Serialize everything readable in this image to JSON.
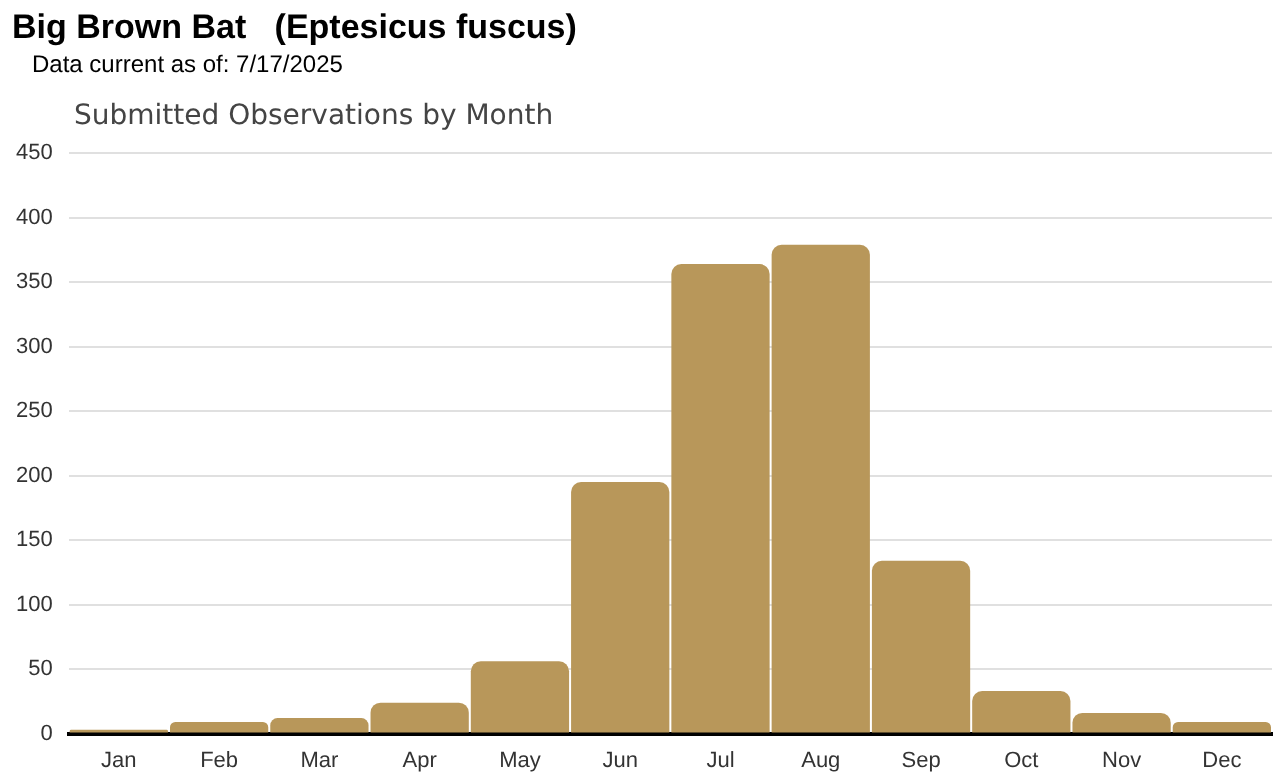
{
  "chart_data": {
    "type": "bar",
    "title": "Big Brown Bat   (Eptesicus fuscus)",
    "subtitle": "Data current as of: 7/17/2025",
    "annotations": [
      "Submitted Observations by Month"
    ],
    "categories": [
      "Jan",
      "Feb",
      "Mar",
      "Apr",
      "May",
      "Jun",
      "Jul",
      "Aug",
      "Sep",
      "Oct",
      "Nov",
      "Dec"
    ],
    "values": [
      3,
      9,
      12,
      24,
      56,
      195,
      364,
      379,
      134,
      33,
      16,
      9
    ],
    "color": "#b8975a",
    "ylim": [
      0,
      450
    ],
    "yticks": [
      0,
      50,
      100,
      150,
      200,
      250,
      300,
      350,
      400,
      450
    ],
    "grid": "y",
    "legend": false
  }
}
